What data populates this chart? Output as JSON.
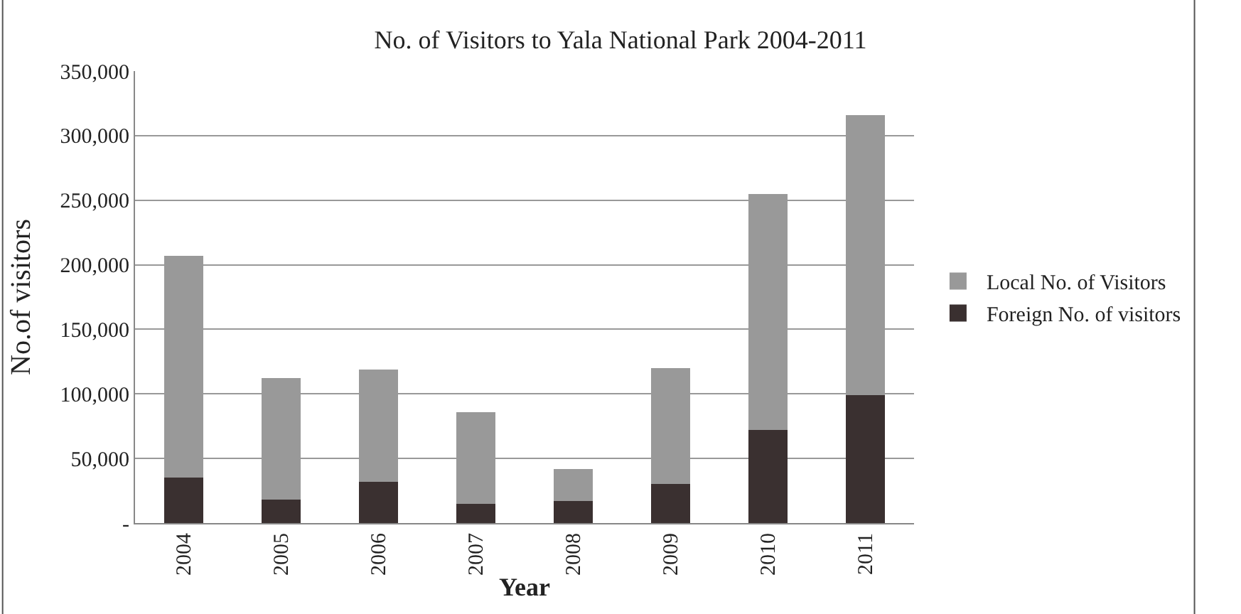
{
  "chart_data": {
    "type": "bar",
    "title": "No. of Visitors to Yala National Park 2004-2011",
    "xlabel": "Year",
    "ylabel": "No.of visitors",
    "categories": [
      "2004",
      "2005",
      "2006",
      "2007",
      "2008",
      "2009",
      "2010",
      "2011"
    ],
    "stacked": true,
    "series": [
      {
        "name": "Foreign No. of visitors",
        "color": "#3a3030",
        "values": [
          35000,
          18000,
          32000,
          15000,
          17000,
          30000,
          72000,
          99000
        ]
      },
      {
        "name": "Local No. of Visitors",
        "color": "#999999",
        "values": [
          172000,
          94000,
          87000,
          71000,
          25000,
          90000,
          183000,
          217000
        ]
      }
    ],
    "ylim": [
      0,
      350000
    ],
    "yticks": [
      {
        "value": 0,
        "label": "-"
      },
      {
        "value": 50000,
        "label": "50,000"
      },
      {
        "value": 100000,
        "label": "100,000"
      },
      {
        "value": 150000,
        "label": "150,000"
      },
      {
        "value": 200000,
        "label": "200,000"
      },
      {
        "value": 250000,
        "label": "250,000"
      },
      {
        "value": 300000,
        "label": "300,000"
      },
      {
        "value": 350000,
        "label": "350,000"
      }
    ],
    "grid": "y",
    "legend": "right"
  }
}
